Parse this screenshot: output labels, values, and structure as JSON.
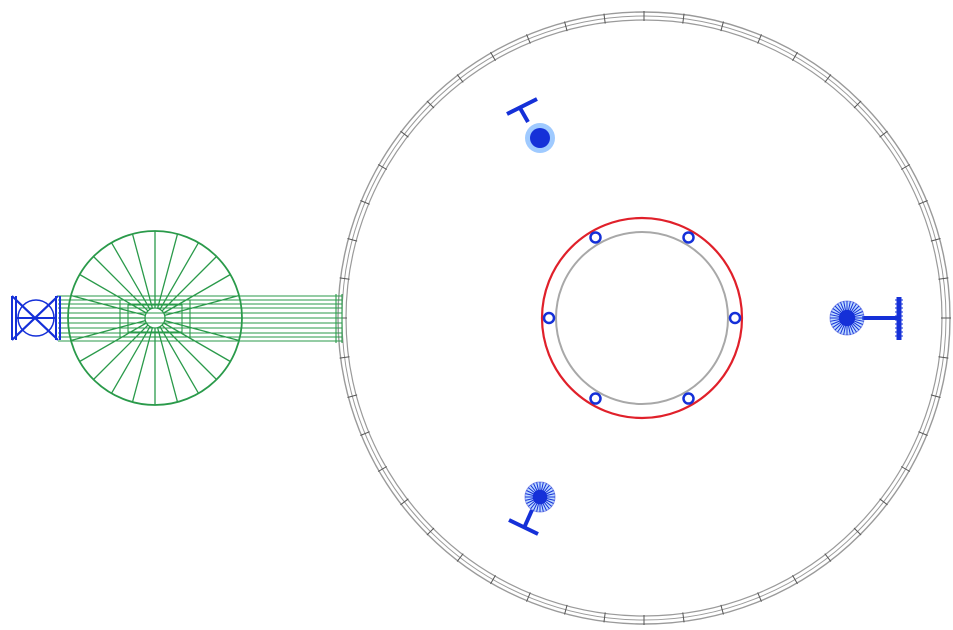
{
  "drawing": {
    "tank": {
      "outer_wall_color": "#9a9a9a",
      "spokes_count": 48
    },
    "center_ring": {
      "outer_color": "#e0202a",
      "inner_color": "#a8a8a8",
      "bolt_count": 6,
      "bolt_color": "#1530d8"
    },
    "bridge": {
      "color": "#2a9a4a",
      "wheel_spokes": 24
    },
    "outlets": {
      "color": "#1530d8",
      "glow_color": "#7fb8ff",
      "count": 3
    },
    "inlet_valve": {
      "color": "#1530d8"
    }
  }
}
